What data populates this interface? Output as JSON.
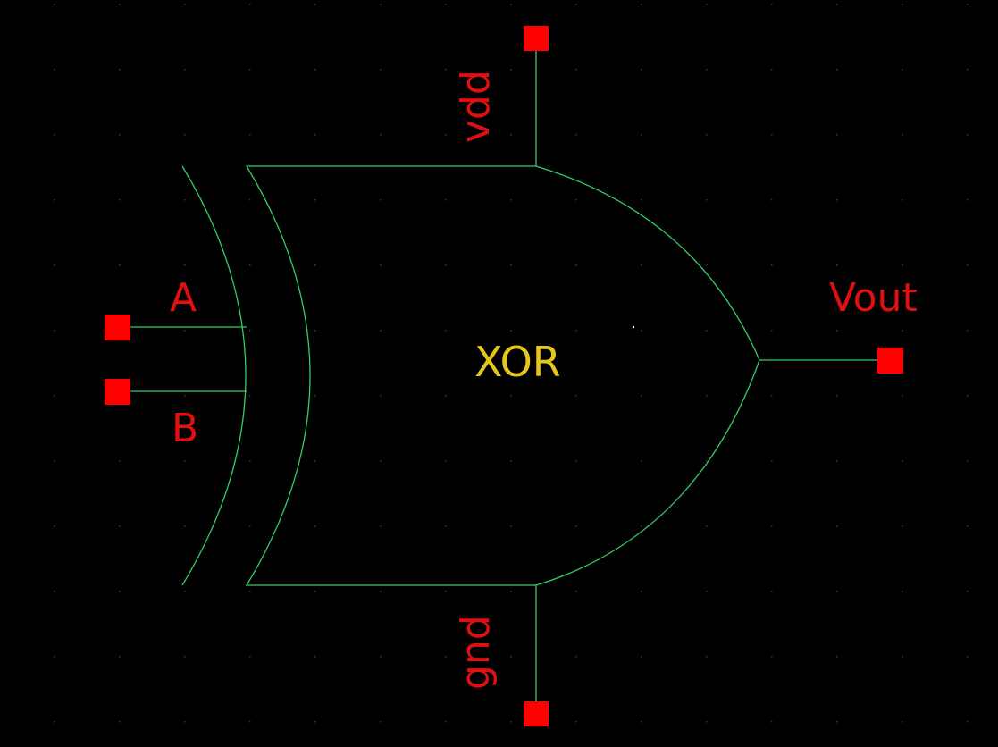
{
  "schematic": {
    "cell_name": "XOR",
    "pins": {
      "a": "A",
      "b": "B",
      "vdd": "vdd",
      "gnd": "gnd",
      "out": "Vout"
    },
    "colors": {
      "background": "#000000",
      "wire": "#33cc66",
      "pin": "#ff0000",
      "pin_label": "#e01010",
      "cell_name": "#e6c619",
      "grid": "#3a3a3a"
    }
  }
}
